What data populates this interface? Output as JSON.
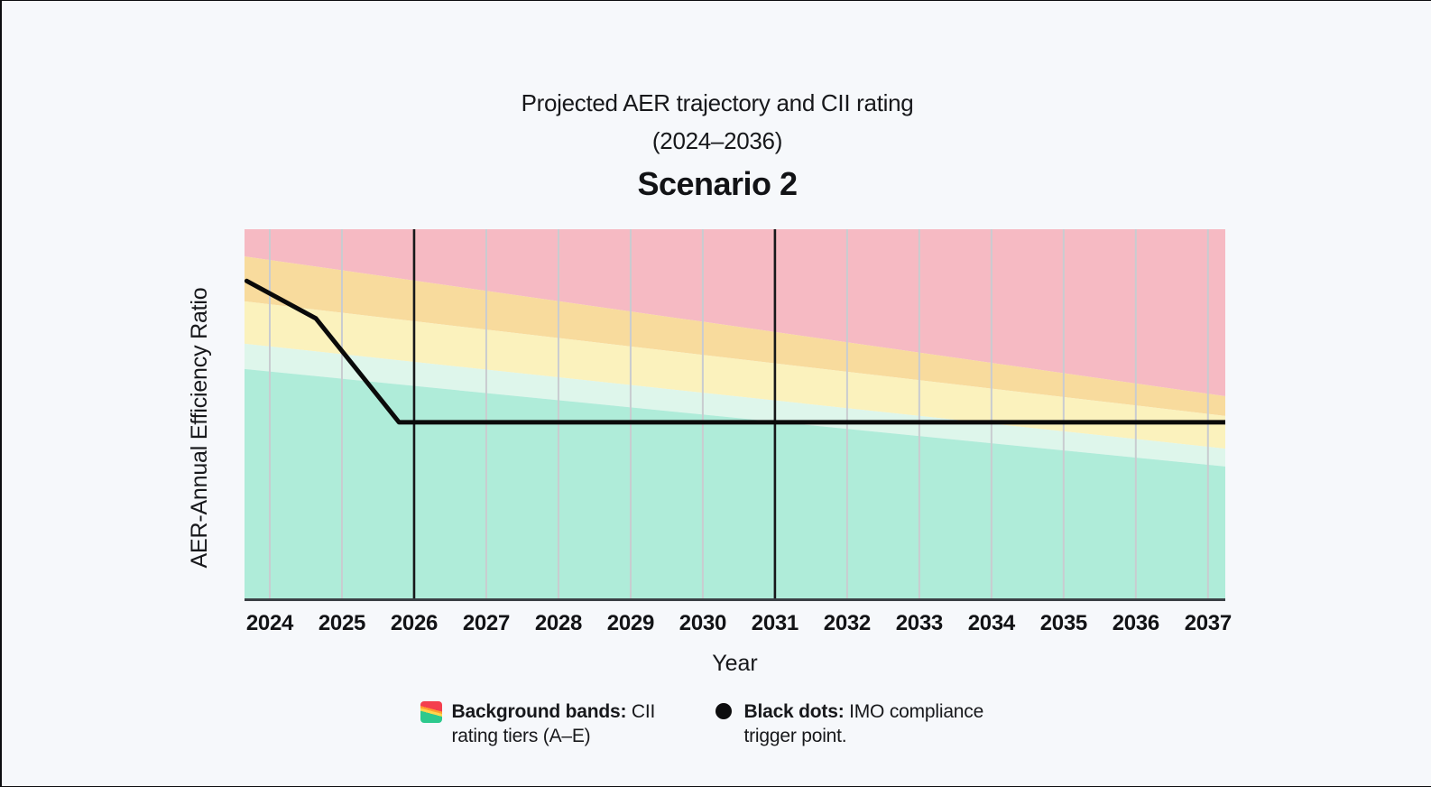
{
  "header": {
    "title_line1": "Projected AER trajectory and CII rating",
    "title_line2": "(2024–2036)",
    "subtitle": "Scenario 2"
  },
  "chart_data": {
    "type": "area",
    "title": "Projected AER trajectory and CII rating (2024–2036)",
    "subtitle": "Scenario 2",
    "xlabel": "Year",
    "ylabel": "AER-Annual Efficiency Ratio",
    "x_range": [
      2023.65,
      2037.24
    ],
    "x_ticks": [
      2024,
      2025,
      2026,
      2027,
      2028,
      2029,
      2030,
      2031,
      2032,
      2033,
      2034,
      2035,
      2036,
      2037
    ],
    "y_axis_note": "no numeric y ticks shown; y values are fractions of plot height measured from top",
    "bands": [
      {
        "tier": "E",
        "color": "#f6bac3",
        "top_frac": [
          0.0,
          0.0
        ],
        "bottom_frac": [
          0.073,
          0.449
        ]
      },
      {
        "tier": "D",
        "color": "#f8db9d",
        "top_frac": [
          0.073,
          0.449
        ],
        "bottom_frac": [
          0.194,
          0.502
        ]
      },
      {
        "tier": "C",
        "color": "#fbf2bd",
        "top_frac": [
          0.194,
          0.502
        ],
        "bottom_frac": [
          0.308,
          0.59
        ]
      },
      {
        "tier": "B",
        "color": "#def6eb",
        "top_frac": [
          0.308,
          0.59
        ],
        "bottom_frac": [
          0.376,
          0.638
        ]
      },
      {
        "tier": "A",
        "color": "#afecd9",
        "top_frac": [
          0.376,
          0.638
        ],
        "bottom_frac": [
          1.0,
          1.0
        ]
      }
    ],
    "series": [
      {
        "name": "Projected AER trajectory",
        "color": "#0a0a0a",
        "stroke_width": 5,
        "points": [
          [
            2023.68,
            0.139
          ],
          [
            2024.64,
            0.24
          ],
          [
            2025.79,
            0.519
          ],
          [
            2037.24,
            0.519
          ]
        ]
      }
    ],
    "trigger_lines": {
      "years": [
        2026,
        2031
      ],
      "color": "#17181a",
      "stroke_width": 2.6,
      "meaning": "IMO compliance trigger point"
    },
    "gridline_color": "#c9ccd0",
    "axis_line_color": "#3b4045",
    "legend_position": "bottom"
  },
  "legend": {
    "items": [
      {
        "icon": "cii-bands-swatch",
        "bold": "Background bands:",
        "text": " CII rating tiers (A–E)"
      },
      {
        "icon": "black-dot",
        "bold": "Black dots:",
        "text": " IMO compliance trigger point."
      }
    ],
    "swatch_colors": [
      "#f43f4e",
      "#ff9f2e",
      "#ffd54d",
      "#2dc98d"
    ],
    "dot_color": "#0d0d0e"
  }
}
